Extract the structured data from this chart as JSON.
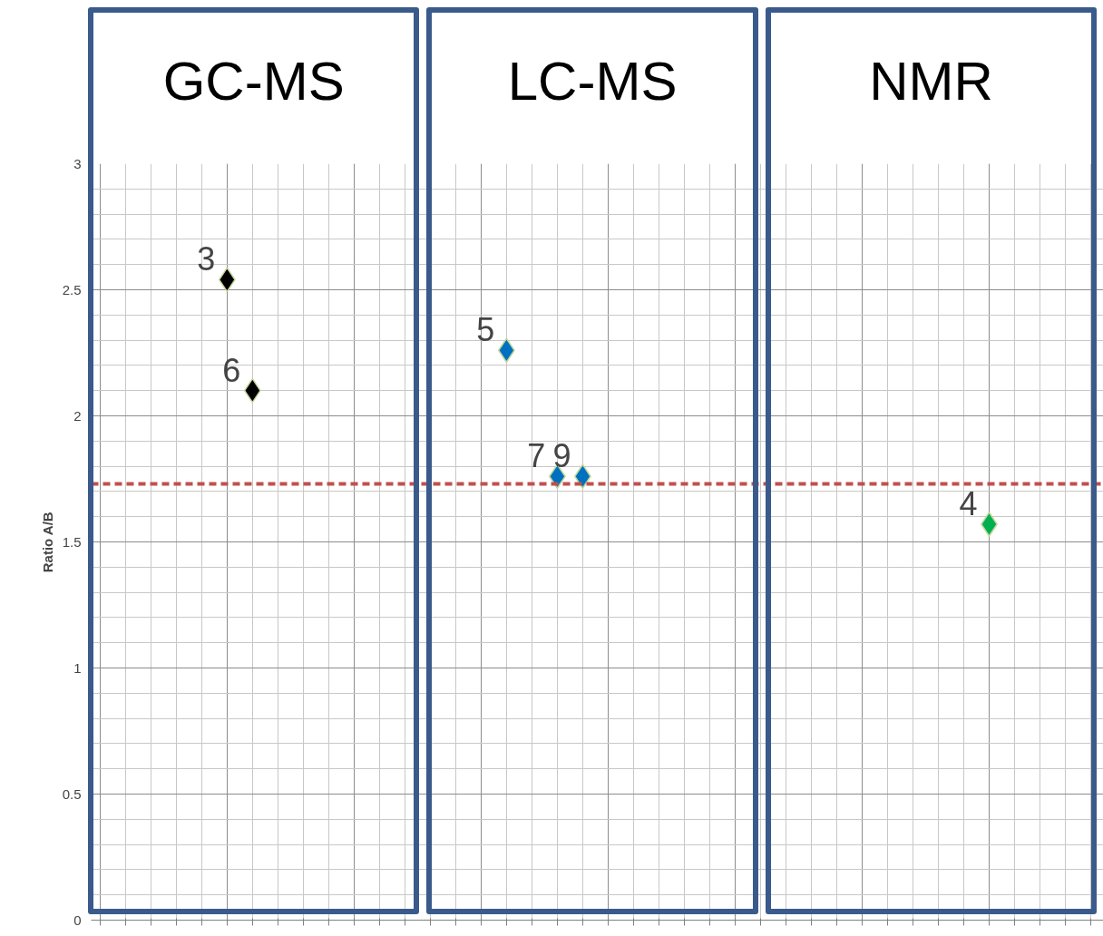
{
  "chart_data": {
    "type": "scatter",
    "ylabel": "Ratio A/B",
    "categories": [
      null,
      null,
      null,
      null,
      null,
      null,
      null,
      null,
      null,
      null,
      null,
      null,
      null,
      null,
      null,
      null,
      null,
      null,
      null,
      null,
      null,
      null,
      null,
      null,
      null,
      null,
      null,
      null,
      null,
      null,
      null,
      null,
      null,
      null,
      null,
      null,
      null,
      null,
      null,
      null
    ],
    "series": [
      {
        "color": "#000000",
        "values": [
          null,
          null,
          null,
          null,
          null,
          2.54,
          2.1,
          null,
          null,
          null,
          null,
          null,
          null,
          null,
          null,
          null,
          null,
          null,
          null,
          null,
          null,
          null,
          null,
          null,
          null,
          null,
          null,
          null,
          null,
          null,
          null,
          null,
          null,
          null,
          null,
          null,
          null,
          null,
          null,
          null
        ]
      },
      {
        "color": "#0070c0",
        "values": [
          null,
          null,
          null,
          null,
          null,
          null,
          null,
          null,
          null,
          null,
          null,
          null,
          null,
          null,
          null,
          null,
          2.26,
          null,
          1.76,
          1.76,
          null,
          null,
          null,
          null,
          null,
          null,
          null,
          null,
          null,
          null,
          null,
          null,
          null,
          null,
          null,
          null,
          null,
          null,
          null,
          null
        ]
      },
      {
        "color": "#00b050",
        "values": [
          null,
          null,
          null,
          null,
          null,
          null,
          null,
          null,
          null,
          null,
          null,
          null,
          null,
          null,
          null,
          null,
          null,
          null,
          null,
          null,
          null,
          null,
          null,
          null,
          null,
          null,
          null,
          null,
          null,
          null,
          null,
          null,
          null,
          null,
          null,
          1.57,
          null,
          null,
          null,
          null
        ]
      }
    ],
    "annotations": [
      "GC-MS",
      "LC-MS",
      "NMR",
      "3",
      "6",
      "5",
      "7",
      "9",
      "4"
    ],
    "ylim": [
      0,
      3
    ],
    "yticks": [
      0,
      0.5,
      1,
      1.5,
      2,
      2.5,
      3
    ],
    "tick_labels": "y",
    "grid": true,
    "marker": "diamond",
    "ref_lines": [
      {
        "axis": "y",
        "value": 1.73,
        "color": "#c0504d",
        "line_style": "dashed"
      }
    ]
  }
}
